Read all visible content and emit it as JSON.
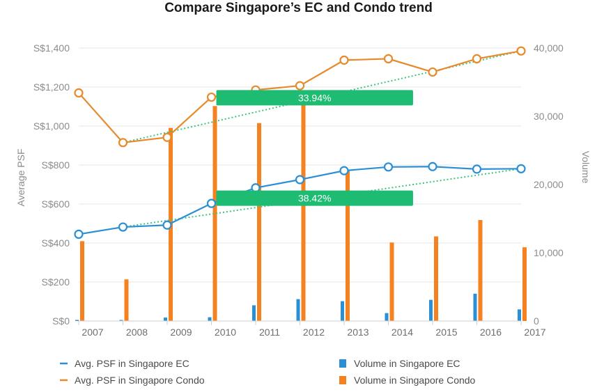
{
  "chart_data": {
    "type": "bar",
    "title": "Compare Singapore’s EC and Condo trend",
    "x": [
      "2007",
      "2008",
      "2009",
      "2010",
      "2011",
      "2012",
      "2013",
      "2014",
      "2015",
      "2016",
      "2017"
    ],
    "ylabel": "Average PSF",
    "y2label": "Volume",
    "ylim": [
      0,
      1400
    ],
    "y2lim": [
      0,
      40000
    ],
    "yticks": [
      "S$0",
      "S$200",
      "S$400",
      "S$600",
      "S$800",
      "S$1,000",
      "S$1,200",
      "S$1,400"
    ],
    "y2ticks": [
      "0",
      "10,000",
      "20,000",
      "30,000",
      "40,000"
    ],
    "grid": true,
    "legend_position": "bottom",
    "series": [
      {
        "name": "Avg. PSF in Singapore EC",
        "type": "line",
        "axis": "left",
        "color": "#2b8fd6",
        "values": [
          445,
          482,
          492,
          603,
          683,
          725,
          771,
          790,
          792,
          779,
          781
        ]
      },
      {
        "name": "Avg. PSF in Singapore Condo",
        "type": "line",
        "axis": "left",
        "color": "#e8892b",
        "values": [
          1170,
          915,
          942,
          1148,
          1185,
          1207,
          1338,
          1345,
          1277,
          1345,
          1385
        ]
      },
      {
        "name": "Volume in Singapore EC",
        "type": "bar",
        "axis": "right",
        "color": "#2b8fd6",
        "values": [
          150,
          150,
          500,
          550,
          2300,
          3200,
          2900,
          1150,
          3100,
          4000,
          1700
        ]
      },
      {
        "name": "Volume in Singapore Condo",
        "type": "bar",
        "axis": "right",
        "color": "#f58220",
        "values": [
          11700,
          6100,
          28300,
          31500,
          29000,
          33600,
          22000,
          11500,
          12400,
          14800,
          10800
        ]
      }
    ],
    "trendlines": [
      {
        "series": "Avg. PSF in Singapore Condo",
        "from_x": "2008",
        "to_x": "2017",
        "from_y": 915,
        "to_y": 1385,
        "color": "#3cc47a"
      },
      {
        "series": "Avg. PSF in Singapore EC",
        "from_x": "2008",
        "to_x": "2017",
        "from_y": 482,
        "to_y": 781,
        "color": "#3cc47a"
      }
    ],
    "annotations": [
      {
        "text": "33.94%",
        "color": "#1ebc72",
        "x_from": "2010",
        "x_to": "2014.7",
        "y": 1145
      },
      {
        "text": "38.42%",
        "color": "#1ebc72",
        "x_from": "2010",
        "x_to": "2014.7",
        "y": 630
      }
    ]
  }
}
